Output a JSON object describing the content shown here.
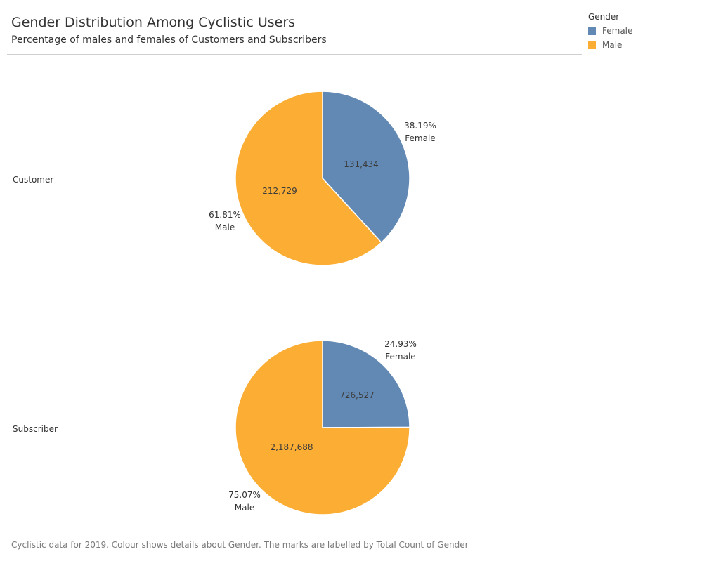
{
  "title": "Gender Distribution Among Cyclistic Users",
  "subtitle": "Percentage of males and females of Customers and Subscribers",
  "footnote": "Cyclistic data for 2019. Colour shows details about Gender. The marks are labelled by Total Count of Gender",
  "legend": {
    "title": "Gender",
    "items": [
      {
        "label": "Female",
        "color": "#6289b4"
      },
      {
        "label": "Male",
        "color": "#fcad33"
      }
    ]
  },
  "chart_data": {
    "type": "pie",
    "legend_position": "top-right",
    "series_names": [
      "Female",
      "Male"
    ],
    "colors": {
      "Female": "#6289b4",
      "Male": "#fcad33"
    },
    "pies": [
      {
        "row_label": "Customer",
        "slices": [
          {
            "name": "Female",
            "value": 131434,
            "value_label": "131,434",
            "percent_label": "38.19%"
          },
          {
            "name": "Male",
            "value": 212729,
            "value_label": "212,729",
            "percent_label": "61.81%"
          }
        ]
      },
      {
        "row_label": "Subscriber",
        "slices": [
          {
            "name": "Female",
            "value": 726527,
            "value_label": "726,527",
            "percent_label": "24.93%"
          },
          {
            "name": "Male",
            "value": 2187688,
            "value_label": "2,187,688",
            "percent_label": "75.07%"
          }
        ]
      }
    ]
  }
}
